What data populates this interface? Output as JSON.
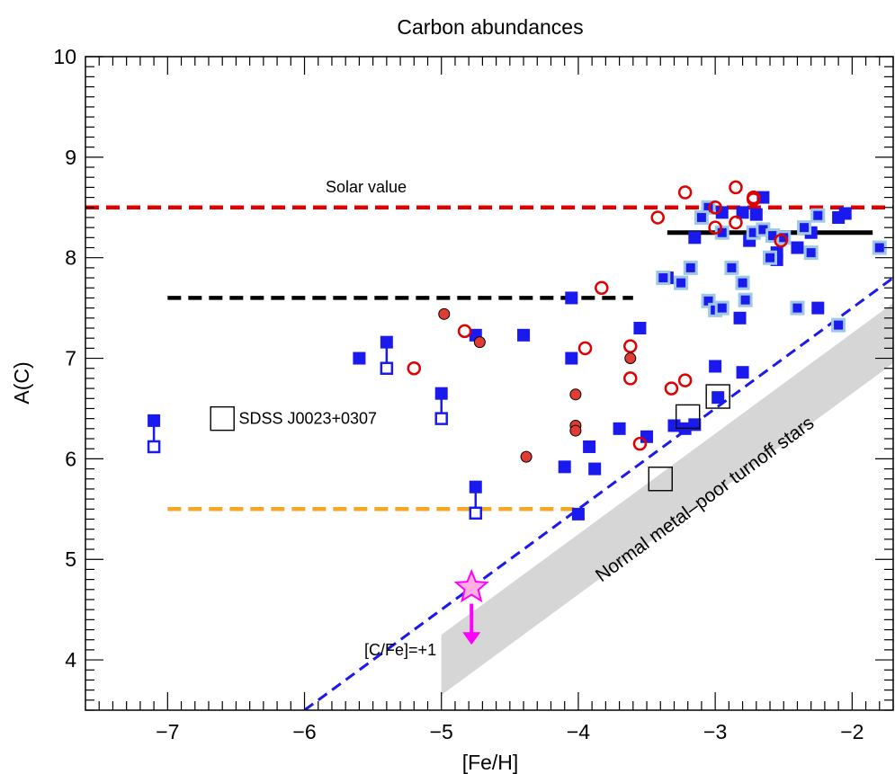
{
  "chart_data": {
    "type": "scatter",
    "title": "Carbon abundances",
    "xlabel": "[Fe/H]",
    "ylabel": "A(C)",
    "xlim": [
      -7.6,
      -1.7
    ],
    "ylim": [
      3.5,
      10.0
    ],
    "x_ticks": [
      -7,
      -6,
      -5,
      -4,
      -3,
      -2
    ],
    "x_tick_labels": [
      "−7",
      "−6",
      "−5",
      "−4",
      "−3",
      "−2"
    ],
    "y_ticks": [
      4,
      5,
      6,
      7,
      8,
      9,
      10
    ],
    "y_tick_labels": [
      "4",
      "5",
      "6",
      "7",
      "8",
      "9",
      "10"
    ],
    "grid": false,
    "colors": {
      "blue": "#1a1aee",
      "light_blue": "#9fc7e6",
      "red": "#e00000",
      "red_fill": "#e03c34",
      "magenta": "#ff00ff",
      "pink": "#ffb0e0",
      "orange": "#f5a623",
      "band": "#d6d6d6"
    },
    "annotations": {
      "solar": "Solar value",
      "sdss": "SDSS J0023+0307",
      "cfe": "[C/Fe]=+1",
      "band": "Normal metal–poor turnoff stars"
    },
    "reference_lines": [
      {
        "role": "solar",
        "style": "dashed",
        "color": "red",
        "x": [
          -7.6,
          -1.7
        ],
        "y": [
          8.5,
          8.5
        ]
      },
      {
        "role": "level",
        "style": "dashed",
        "color": "black",
        "x": [
          -7.0,
          -3.6
        ],
        "y": [
          7.6,
          7.6
        ]
      },
      {
        "role": "level",
        "style": "dashed",
        "color": "orange",
        "x": [
          -7.0,
          -4.0
        ],
        "y": [
          5.5,
          5.5
        ]
      },
      {
        "role": "level",
        "style": "solid",
        "color": "black",
        "x": [
          -3.35,
          -1.85
        ],
        "y": [
          8.25,
          8.25
        ]
      },
      {
        "role": "cfe1",
        "style": "dashed",
        "color": "blue",
        "x": [
          -6.0,
          -1.7
        ],
        "y": [
          3.5,
          7.8
        ]
      }
    ],
    "band": {
      "x": [
        -5.0,
        -1.7
      ],
      "lower": [
        3.65,
        6.95
      ],
      "upper": [
        4.25,
        7.55
      ]
    },
    "series": [
      {
        "marker": "blue_square",
        "points": [
          [
            -7.1,
            6.38
          ],
          [
            -5.6,
            7.0
          ],
          [
            -5.4,
            7.16
          ],
          [
            -5.0,
            6.65
          ],
          [
            -4.75,
            7.23
          ],
          [
            -4.75,
            5.72
          ],
          [
            -4.4,
            7.23
          ],
          [
            -4.05,
            7.6
          ],
          [
            -4.05,
            7.0
          ],
          [
            -4.1,
            5.92
          ],
          [
            -4.0,
            5.45
          ],
          [
            -3.92,
            6.12
          ],
          [
            -3.88,
            5.9
          ],
          [
            -3.7,
            6.3
          ],
          [
            -3.55,
            7.3
          ],
          [
            -3.5,
            6.22
          ],
          [
            -3.3,
            6.33
          ],
          [
            -3.22,
            6.3
          ],
          [
            -3.15,
            6.34
          ],
          [
            -3.0,
            6.92
          ],
          [
            -2.98,
            6.61
          ],
          [
            -2.8,
            6.86
          ],
          [
            -3.35,
            7.8
          ],
          [
            -3.15,
            8.2
          ],
          [
            -2.95,
            8.45
          ],
          [
            -2.8,
            8.45
          ],
          [
            -2.75,
            8.17
          ],
          [
            -2.7,
            8.43
          ],
          [
            -2.65,
            8.6
          ],
          [
            -2.55,
            8.05
          ],
          [
            -2.55,
            7.98
          ],
          [
            -2.4,
            8.1
          ],
          [
            -2.3,
            8.25
          ],
          [
            -2.25,
            7.5
          ],
          [
            -2.1,
            8.4
          ],
          [
            -2.05,
            8.44
          ],
          [
            -2.82,
            7.4
          ]
        ]
      },
      {
        "marker": "blue_square_lightedge",
        "points": [
          [
            -3.38,
            7.8
          ],
          [
            -3.25,
            7.75
          ],
          [
            -3.18,
            7.9
          ],
          [
            -3.05,
            7.57
          ],
          [
            -3.0,
            7.48
          ],
          [
            -2.95,
            7.5
          ],
          [
            -2.88,
            7.9
          ],
          [
            -2.8,
            7.75
          ],
          [
            -2.78,
            7.58
          ],
          [
            -2.72,
            8.25
          ],
          [
            -2.65,
            8.28
          ],
          [
            -2.6,
            8.0
          ],
          [
            -2.58,
            8.22
          ],
          [
            -2.5,
            8.2
          ],
          [
            -2.4,
            7.5
          ],
          [
            -2.35,
            8.3
          ],
          [
            -2.3,
            8.05
          ],
          [
            -2.25,
            8.42
          ],
          [
            -2.1,
            7.33
          ],
          [
            -1.8,
            8.1
          ],
          [
            -3.05,
            8.5
          ],
          [
            -2.95,
            8.25
          ],
          [
            -3.1,
            8.4
          ]
        ]
      },
      {
        "marker": "blue_open_square",
        "points": [
          [
            -7.1,
            6.12
          ],
          [
            -5.4,
            6.9
          ],
          [
            -5.0,
            6.4
          ],
          [
            -4.75,
            5.46
          ]
        ]
      },
      {
        "marker": "red_open_circle",
        "points": [
          [
            -5.2,
            6.9
          ],
          [
            -4.83,
            7.27
          ],
          [
            -3.95,
            7.1
          ],
          [
            -3.83,
            7.7
          ],
          [
            -3.62,
            7.12
          ],
          [
            -3.62,
            6.8
          ],
          [
            -3.55,
            6.15
          ],
          [
            -3.42,
            8.4
          ],
          [
            -3.32,
            6.7
          ],
          [
            -3.22,
            8.65
          ],
          [
            -3.22,
            6.78
          ],
          [
            -3.0,
            8.5
          ],
          [
            -3.0,
            8.3
          ],
          [
            -2.85,
            8.7
          ],
          [
            -2.85,
            8.35
          ],
          [
            -2.72,
            8.6
          ],
          [
            -2.72,
            8.58
          ],
          [
            -2.52,
            8.17
          ]
        ]
      },
      {
        "marker": "red_filled_circle",
        "points": [
          [
            -4.98,
            7.44
          ],
          [
            -4.72,
            7.16
          ],
          [
            -4.38,
            6.02
          ],
          [
            -4.02,
            6.64
          ],
          [
            -4.02,
            6.33
          ],
          [
            -4.02,
            6.28
          ],
          [
            -3.62,
            7.0
          ]
        ]
      },
      {
        "marker": "black_open_square_large",
        "points": [
          [
            -6.6,
            6.4
          ],
          [
            -3.4,
            5.8
          ],
          [
            -3.2,
            6.42
          ],
          [
            -2.98,
            6.62
          ]
        ]
      },
      {
        "marker": "magenta_star",
        "points": [
          [
            -4.78,
            4.72
          ]
        ]
      }
    ],
    "upper_limit_links": [
      [
        [
          -7.1,
          6.38
        ],
        [
          -7.1,
          6.12
        ]
      ],
      [
        [
          -5.4,
          7.16
        ],
        [
          -5.4,
          6.9
        ]
      ],
      [
        [
          -5.0,
          6.65
        ],
        [
          -5.0,
          6.4
        ]
      ],
      [
        [
          -4.75,
          5.72
        ],
        [
          -4.75,
          5.46
        ]
      ]
    ],
    "upper_limit_arrow": {
      "x": -4.78,
      "from": 4.72,
      "to": 4.15
    }
  }
}
